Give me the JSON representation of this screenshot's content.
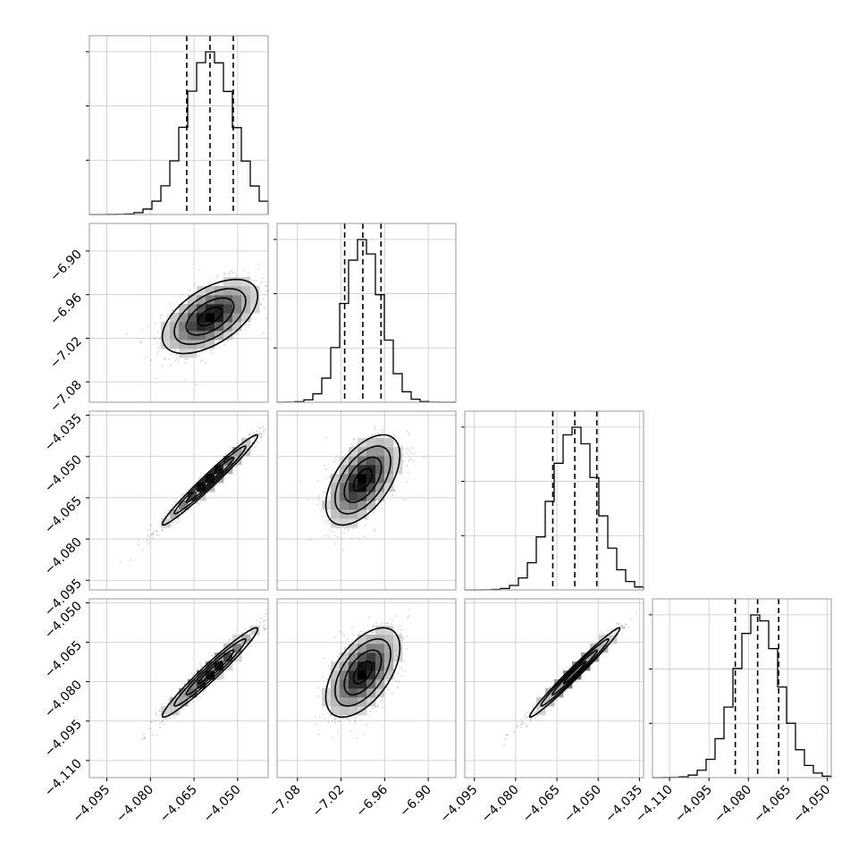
{
  "chart_data": {
    "type": "corner",
    "title": "",
    "grid": true,
    "n_params": 4,
    "parameters": [
      {
        "index": 0,
        "mean": -4.0595,
        "sd": 0.0082,
        "lim": [
          -4.101,
          -4.0395
        ],
        "ticks": [
          -4.095,
          -4.08,
          -4.065,
          -4.05
        ],
        "tick_labels": [
          "−4.095",
          "−4.080",
          "−4.065",
          "−4.050"
        ],
        "quantiles": [
          -4.0675,
          -4.0595,
          -4.0515
        ]
      },
      {
        "index": 1,
        "mean": -6.99,
        "sd": 0.0255,
        "lim": [
          -7.108,
          -6.862
        ],
        "ticks": [
          -7.08,
          -7.02,
          -6.96,
          -6.9
        ],
        "tick_labels": [
          "−7.08",
          "−7.02",
          "−6.96",
          "−6.90"
        ],
        "quantiles": [
          -7.015,
          -6.99,
          -6.965
        ]
      },
      {
        "index": 2,
        "mean": -4.0585,
        "sd": 0.0082,
        "lim": [
          -4.0985,
          -4.0335
        ],
        "ticks": [
          -4.095,
          -4.08,
          -4.065,
          -4.05,
          -4.035
        ],
        "tick_labels": [
          "−4.095",
          "−4.080",
          "−4.065",
          "−4.050",
          "−4.035"
        ],
        "quantiles": [
          -4.0665,
          -4.0585,
          -4.0505
        ]
      },
      {
        "index": 3,
        "mean": -4.0765,
        "sd": 0.0085,
        "lim": [
          -4.1165,
          -4.0485
        ],
        "ticks": [
          -4.11,
          -4.095,
          -4.08,
          -4.065,
          -4.05
        ],
        "tick_labels": [
          "−4.110",
          "−4.095",
          "−4.080",
          "−4.065",
          "−4.050"
        ],
        "quantiles": [
          -4.085,
          -4.0765,
          -4.0685
        ]
      }
    ],
    "histograms": [
      {
        "param": 0,
        "bins": 20,
        "quantiles": [
          0.16,
          0.5,
          0.84
        ]
      },
      {
        "param": 1,
        "bins": 20,
        "quantiles": [
          0.16,
          0.5,
          0.84
        ]
      },
      {
        "param": 2,
        "bins": 20,
        "quantiles": [
          0.16,
          0.5,
          0.84
        ]
      },
      {
        "param": 3,
        "bins": 20,
        "quantiles": [
          0.16,
          0.5,
          0.84
        ]
      }
    ],
    "pairs": [
      {
        "x": 0,
        "y": 1,
        "correlation": 0.55
      },
      {
        "x": 0,
        "y": 2,
        "correlation": 0.98
      },
      {
        "x": 1,
        "y": 2,
        "correlation": 0.55
      },
      {
        "x": 0,
        "y": 3,
        "correlation": 0.97
      },
      {
        "x": 1,
        "y": 3,
        "correlation": 0.55
      },
      {
        "x": 2,
        "y": 3,
        "correlation": 0.985
      }
    ],
    "contour_levels_sigma": [
      0.5,
      1.0,
      1.5,
      2.0
    ]
  }
}
